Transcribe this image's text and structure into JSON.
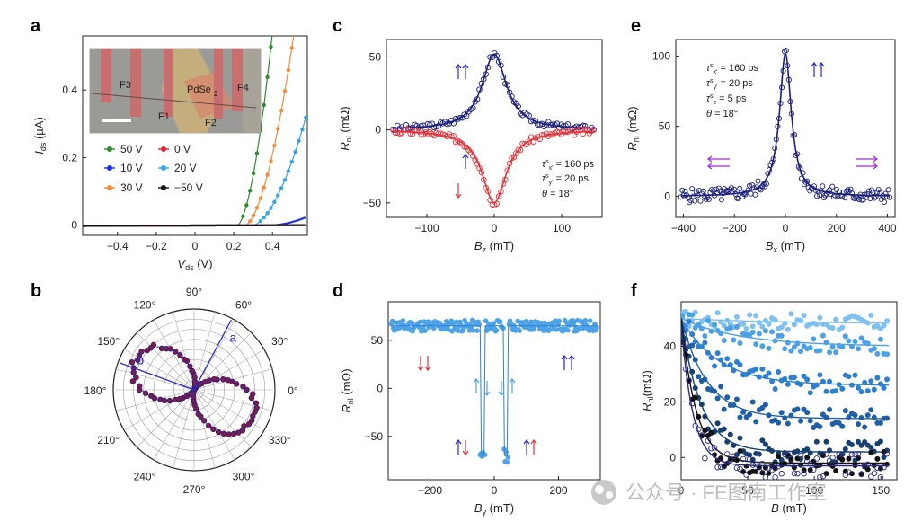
{
  "panels": {
    "a": {
      "label": "a",
      "type": "line",
      "xlabel": "V",
      "xlabel_sub": "ds",
      "xlabel_unit": " (V)",
      "ylabel": "I",
      "ylabel_sub": "ds",
      "ylabel_unit": " (µA)",
      "xlim": [
        -0.58,
        0.58
      ],
      "ylim": [
        -0.03,
        0.56
      ],
      "xticks": [
        "-0.4",
        "-0.2",
        "0",
        "0.2",
        "0.4"
      ],
      "xtick_values": [
        -0.4,
        -0.2,
        0,
        0.2,
        0.4
      ],
      "yticks": [
        "0",
        "0.2",
        "0.4"
      ],
      "ytick_values": [
        0,
        0.2,
        0.4
      ],
      "inset": {
        "labels": [
          "F3",
          "PdSe",
          "2",
          "F4",
          "F1",
          "F2"
        ]
      },
      "series": [
        {
          "name": "50 V",
          "color": "#2e8b2e",
          "onset": 0.22,
          "scale": 8.0
        },
        {
          "name": "30 V",
          "color": "#f28c3c",
          "onset": 0.26,
          "scale": 4.5
        },
        {
          "name": "20 V",
          "color": "#35a4e6",
          "onset": 0.3,
          "scale": 2.2
        },
        {
          "name": "10 V",
          "color": "#1f2ee0",
          "onset": 0.4,
          "scale": 0.35
        },
        {
          "name": "0 V",
          "color": "#e8202a",
          "onset": 0.5,
          "scale": 0.02
        },
        {
          "name": "−50 V",
          "color": "#111111",
          "onset": 0.6,
          "scale": 0.0
        }
      ]
    },
    "b": {
      "label": "b",
      "type": "polar",
      "angle_labels": [
        "0°",
        "30°",
        "60°",
        "90°",
        "120°",
        "150°",
        "180°",
        "210°",
        "240°",
        "270°",
        "300°",
        "330°"
      ],
      "angle_values": [
        0,
        30,
        60,
        90,
        120,
        150,
        180,
        210,
        240,
        270,
        300,
        330
      ],
      "axis_a": "a",
      "axis_b": "b",
      "axis_a_angle": 62,
      "axis_b_angle": 160,
      "lobe_angle": 153
    },
    "c": {
      "label": "c",
      "type": "scatter",
      "xlabel": "B",
      "xlabel_sub": "z",
      "xlabel_unit": " (mT)",
      "ylabel": "R",
      "ylabel_sub": "nl",
      "ylabel_unit": " (mΩ)",
      "xlim": [
        -160,
        160
      ],
      "ylim": [
        -60,
        62
      ],
      "xticks": [
        "-100",
        "0",
        "100"
      ],
      "xtick_values": [
        -100,
        0,
        100
      ],
      "yticks": [
        "-50",
        "0",
        "50"
      ],
      "ytick_values": [
        -50,
        0,
        50
      ],
      "legend": [
        "τ",
        "s",
        "x′",
        " = 160 ps",
        "τ",
        "s",
        "y′",
        " = 20 ps",
        "θ",
        " = 18°"
      ],
      "series": [
        {
          "name": "parallel",
          "color": "#1b1f7a",
          "peak": 52,
          "width": 22
        },
        {
          "name": "antiparallel",
          "color": "#e3333a",
          "peak": -50,
          "width": 22
        }
      ]
    },
    "d": {
      "label": "d",
      "type": "scatter",
      "xlabel": "B",
      "xlabel_sub": "y",
      "xlabel_unit": " (mT)",
      "ylabel": "R",
      "ylabel_sub": "nl",
      "ylabel_unit": " (mΩ)",
      "xlim": [
        -330,
        330
      ],
      "ylim": [
        -95,
        90
      ],
      "xticks": [
        "-200",
        "0",
        "200"
      ],
      "xtick_values": [
        -200,
        0,
        200
      ],
      "yticks": [
        "-50",
        "0",
        "50"
      ],
      "ytick_values": [
        -50,
        0,
        50
      ],
      "color": "#4da3e8",
      "baseline": 65,
      "dip": -70
    },
    "e": {
      "label": "e",
      "type": "scatter",
      "xlabel": "B",
      "xlabel_sub": "x",
      "xlabel_unit": " (mT)",
      "ylabel": "R",
      "ylabel_sub": "nl",
      "ylabel_unit": " (mΩ)",
      "xlim": [
        -430,
        430
      ],
      "ylim": [
        -15,
        112
      ],
      "xticks": [
        "-400",
        "-200",
        "0",
        "200",
        "400"
      ],
      "xtick_values": [
        -400,
        -200,
        0,
        200,
        400
      ],
      "yticks": [
        "0",
        "50",
        "100"
      ],
      "ytick_values": [
        0,
        50,
        100
      ],
      "legend": [
        "τ",
        "s",
        "x′",
        " = 160 ps",
        "τ",
        "s",
        "y′",
        " = 20 ps",
        "τ",
        "s",
        "z",
        " = 5 ps",
        "θ",
        " = 18°"
      ],
      "color": "#1b1f7a",
      "peak": 102,
      "width": 28
    },
    "f": {
      "label": "f",
      "type": "scatter",
      "xlabel": "B",
      "xlabel_unit": " (mT)",
      "ylabel": "R",
      "ylabel_sub": "nl",
      "ylabel_unit": "(mΩ)",
      "xlim": [
        0,
        162
      ],
      "ylim": [
        -8,
        56
      ],
      "xticks": [
        "0",
        "50",
        "100",
        "150"
      ],
      "xtick_values": [
        0,
        50,
        100,
        150
      ],
      "yticks": [
        "0",
        "20",
        "40"
      ],
      "ytick_values": [
        0,
        20,
        40
      ],
      "series": [
        {
          "color": "#7fc0f0",
          "start": 50,
          "end": 48
        },
        {
          "color": "#4ca0e6",
          "start": 50,
          "end": 40
        },
        {
          "color": "#2f7fd0",
          "start": 50,
          "end": 26
        },
        {
          "color": "#1f5fa8",
          "start": 50,
          "end": 14
        },
        {
          "color": "#15406f",
          "start": 50,
          "end": 2
        },
        {
          "color": "#111111",
          "start": 50,
          "end": -2
        },
        {
          "color": "#2a2c80",
          "start": 48,
          "end": -3,
          "hollow": true
        }
      ]
    }
  },
  "watermark": "公众号 · FE图南工作室"
}
